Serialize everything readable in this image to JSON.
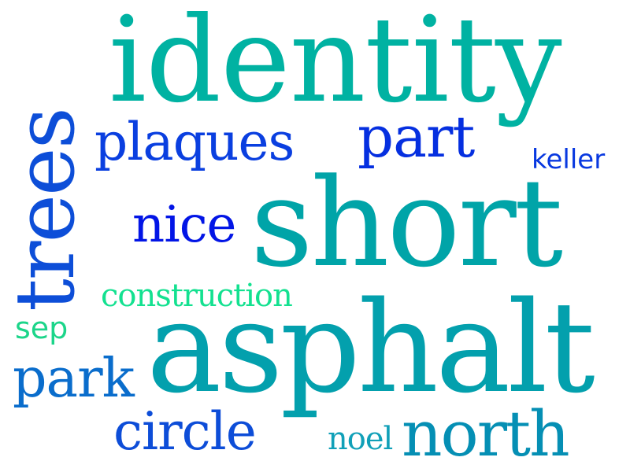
{
  "word_cloud": {
    "words": [
      {
        "id": "identity",
        "text": "identity",
        "color": "#00b2a2"
      },
      {
        "id": "short",
        "text": "short",
        "color": "#00a4a8"
      },
      {
        "id": "asphalt",
        "text": "asphalt",
        "color": "#03a0ad"
      },
      {
        "id": "trees",
        "text": "trees",
        "color": "#0d4ed8"
      },
      {
        "id": "plaques",
        "text": "plaques",
        "color": "#0a3fe0"
      },
      {
        "id": "part",
        "text": "part",
        "color": "#052fe0"
      },
      {
        "id": "keller",
        "text": "keller",
        "color": "#0838e0"
      },
      {
        "id": "nice",
        "text": "nice",
        "color": "#0215e6"
      },
      {
        "id": "construction",
        "text": "construction",
        "color": "#13e190"
      },
      {
        "id": "sep",
        "text": "sep",
        "color": "#1cd58a"
      },
      {
        "id": "park",
        "text": "park",
        "color": "#0a6dcc"
      },
      {
        "id": "circle",
        "text": "circle",
        "color": "#0d4dd8"
      },
      {
        "id": "noel",
        "text": "noel",
        "color": "#11a0b8"
      },
      {
        "id": "north",
        "text": "north",
        "color": "#058fb4"
      }
    ]
  }
}
